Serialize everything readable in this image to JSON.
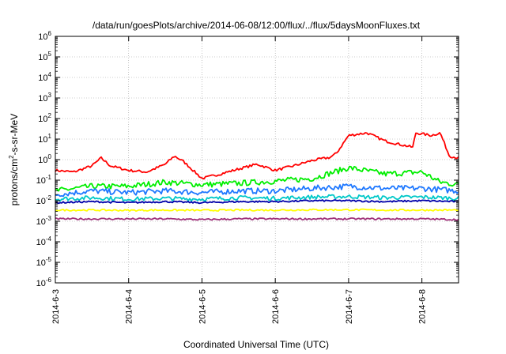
{
  "chart_data": {
    "type": "line",
    "title": "/data/run/goesPlots/archive/2014-06-08/12:00/flux/../flux/5daysMoonFluxes.txt",
    "xlabel": "Coordinated Universal Time (UTC)",
    "ylabel": "protons/cm²-s-sr-MeV",
    "ylabel_parts": {
      "pre": "protons/cm",
      "sup": "2",
      "post": "-s-sr-MeV"
    },
    "yscale": "log",
    "ylim": [
      1e-06,
      1000000.0
    ],
    "xlim": [
      "2014-06-03 00:00",
      "2014-06-08 12:00"
    ],
    "grid": true,
    "x_ticks": [
      "2014-6-3",
      "2014-6-4",
      "2014-6-5",
      "2014-6-6",
      "2014-6-7",
      "2014-6-8"
    ],
    "y_ticks": [
      {
        "base": "10",
        "exp": "6"
      },
      {
        "base": "10",
        "exp": "5"
      },
      {
        "base": "10",
        "exp": "4"
      },
      {
        "base": "10",
        "exp": "3"
      },
      {
        "base": "10",
        "exp": "2"
      },
      {
        "base": "10",
        "exp": "1"
      },
      {
        "base": "10",
        "exp": "0"
      },
      {
        "base": "10",
        "exp": "-1"
      },
      {
        "base": "10",
        "exp": "-2"
      },
      {
        "base": "10",
        "exp": "-3"
      },
      {
        "base": "10",
        "exp": "-4"
      },
      {
        "base": "10",
        "exp": "-5"
      },
      {
        "base": "10",
        "exp": "-6"
      }
    ],
    "series": [
      {
        "color": "#ff0000",
        "x": [
          "2014-06-03 00:00",
          "2014-06-03 06:00",
          "2014-06-03 12:00",
          "2014-06-03 15:00",
          "2014-06-03 18:00",
          "2014-06-04 00:00",
          "2014-06-04 06:00",
          "2014-06-04 12:00",
          "2014-06-04 15:00",
          "2014-06-04 18:00",
          "2014-06-05 00:00",
          "2014-06-05 06:00",
          "2014-06-05 12:00",
          "2014-06-05 18:00",
          "2014-06-06 00:00",
          "2014-06-06 06:00",
          "2014-06-06 12:00",
          "2014-06-06 18:00",
          "2014-06-06 20:00",
          "2014-06-07 00:00",
          "2014-06-07 06:00",
          "2014-06-07 12:00",
          "2014-06-07 18:00",
          "2014-06-07 21:00",
          "2014-06-07 22:00",
          "2014-06-08 00:00",
          "2014-06-08 03:00",
          "2014-06-08 06:00",
          "2014-06-08 09:00",
          "2014-06-08 12:00"
        ],
        "values": [
          0.3,
          0.25,
          0.5,
          1.2,
          0.5,
          0.3,
          0.25,
          0.6,
          1.5,
          0.8,
          0.12,
          0.2,
          0.35,
          0.6,
          0.3,
          0.5,
          0.9,
          1.3,
          2,
          15,
          20,
          8,
          5,
          4,
          20,
          18,
          15,
          20,
          1.5,
          1.2
        ]
      },
      {
        "color": "#00ee00",
        "x": [
          "2014-06-03 00:00",
          "2014-06-03 12:00",
          "2014-06-04 00:00",
          "2014-06-04 12:00",
          "2014-06-05 00:00",
          "2014-06-05 12:00",
          "2014-06-06 00:00",
          "2014-06-06 12:00",
          "2014-06-07 00:00",
          "2014-06-07 12:00",
          "2014-06-08 00:00",
          "2014-06-08 06:00",
          "2014-06-08 12:00"
        ],
        "values": [
          0.03,
          0.05,
          0.05,
          0.08,
          0.06,
          0.07,
          0.09,
          0.12,
          0.4,
          0.2,
          0.25,
          0.08,
          0.06
        ]
      },
      {
        "color": "#1e78ff",
        "x": [
          "2014-06-03 00:00",
          "2014-06-03 12:00",
          "2014-06-04 00:00",
          "2014-06-04 12:00",
          "2014-06-05 00:00",
          "2014-06-05 12:00",
          "2014-06-06 00:00",
          "2014-06-06 12:00",
          "2014-06-07 00:00",
          "2014-06-07 12:00",
          "2014-06-08 00:00",
          "2014-06-08 12:00"
        ],
        "values": [
          0.02,
          0.03,
          0.025,
          0.03,
          0.025,
          0.03,
          0.03,
          0.04,
          0.05,
          0.04,
          0.04,
          0.03
        ]
      },
      {
        "color": "#00c8c8",
        "x": [
          "2014-06-03 00:00",
          "2014-06-03 12:00",
          "2014-06-04 00:00",
          "2014-06-04 12:00",
          "2014-06-05 00:00",
          "2014-06-05 12:00",
          "2014-06-06 00:00",
          "2014-06-06 12:00",
          "2014-06-07 00:00",
          "2014-06-07 12:00",
          "2014-06-08 00:00",
          "2014-06-08 12:00"
        ],
        "values": [
          0.012,
          0.014,
          0.012,
          0.013,
          0.012,
          0.014,
          0.013,
          0.015,
          0.016,
          0.014,
          0.015,
          0.013
        ]
      },
      {
        "color": "#0000aa",
        "x": [
          "2014-06-03 00:00",
          "2014-06-03 12:00",
          "2014-06-04 00:00",
          "2014-06-04 12:00",
          "2014-06-05 00:00",
          "2014-06-05 12:00",
          "2014-06-06 00:00",
          "2014-06-06 12:00",
          "2014-06-07 00:00",
          "2014-06-07 12:00",
          "2014-06-08 00:00",
          "2014-06-08 12:00"
        ],
        "values": [
          0.008,
          0.009,
          0.008,
          0.009,
          0.008,
          0.009,
          0.009,
          0.01,
          0.01,
          0.009,
          0.01,
          0.009
        ]
      },
      {
        "color": "#ffff00",
        "x": [
          "2014-06-03 00:00",
          "2014-06-03 12:00",
          "2014-06-04 00:00",
          "2014-06-04 12:00",
          "2014-06-05 00:00",
          "2014-06-05 12:00",
          "2014-06-06 00:00",
          "2014-06-06 12:00",
          "2014-06-07 00:00",
          "2014-06-07 12:00",
          "2014-06-08 00:00",
          "2014-06-08 12:00"
        ],
        "values": [
          0.0035,
          0.0035,
          0.0034,
          0.0035,
          0.0034,
          0.0035,
          0.0035,
          0.0036,
          0.0036,
          0.0035,
          0.0035,
          0.0035
        ]
      },
      {
        "color": "#a0307a",
        "x": [
          "2014-06-03 00:00",
          "2014-06-03 12:00",
          "2014-06-04 00:00",
          "2014-06-04 12:00",
          "2014-06-05 00:00",
          "2014-06-05 12:00",
          "2014-06-06 00:00",
          "2014-06-06 12:00",
          "2014-06-07 00:00",
          "2014-06-07 12:00",
          "2014-06-08 00:00",
          "2014-06-08 12:00"
        ],
        "values": [
          0.0013,
          0.0013,
          0.0013,
          0.0013,
          0.0012,
          0.0013,
          0.0013,
          0.0013,
          0.0013,
          0.0013,
          0.0013,
          0.0012
        ]
      }
    ]
  }
}
